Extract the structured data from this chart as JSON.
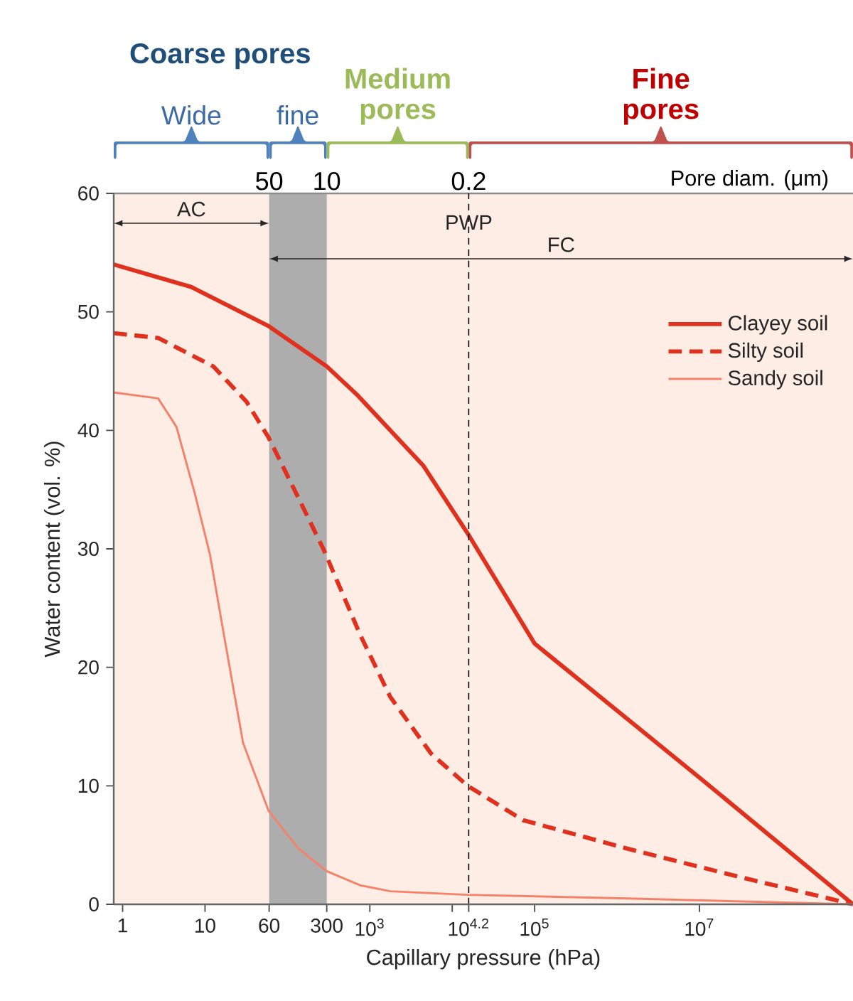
{
  "chart_data": {
    "type": "line",
    "xlabel": "Capillary pressure (hPa)",
    "ylabel": "Water content (vol. %)",
    "log": "x",
    "xlim": [
      0.78,
      730000000
    ],
    "ylim": [
      0,
      60
    ],
    "xticks": [
      1,
      10,
      60,
      300,
      {
        "value": 1000,
        "label": "10$^{3}$"
      },
      {
        "value": 10000,
        "label": null
      },
      {
        "value": 15849,
        "label": "10$^{4.2}$"
      },
      {
        "value": 100000,
        "label": "10$^{5}$"
      },
      {
        "value": 10000000,
        "label": "10$^{7}$"
      }
    ],
    "yticks": [
      0,
      10,
      20,
      30,
      40,
      50,
      60
    ],
    "legend": "top right",
    "series": [
      {
        "name": "Clayey soil",
        "color": "#e0301e",
        "line_style": "solid",
        "x": [
          0.78,
          6.8,
          59,
          300,
          701,
          1770,
          4480,
          15400,
          100000,
          10000000,
          730000000
        ],
        "values": [
          54.0,
          52.1,
          48.8,
          45.4,
          43.0,
          40.0,
          37.0,
          31.3,
          22.0,
          10.7,
          0
        ]
      },
      {
        "name": "Silty soil",
        "color": "#e0301e",
        "line_style": "dashed",
        "x": [
          0.78,
          2.7,
          12.6,
          32,
          59,
          136,
          277,
          769,
          1770,
          5560,
          15400,
          72300,
          1330000,
          31000000,
          730000000
        ],
        "values": [
          48.2,
          47.8,
          45.4,
          42.4,
          39.4,
          34.3,
          29.9,
          22.7,
          17.5,
          12.7,
          10.0,
          7.1,
          4.7,
          2.3,
          0
        ]
      },
      {
        "name": "Sandy soil",
        "color": "#f4826b",
        "line_style": "solid",
        "x": [
          0.78,
          2.7,
          4.5,
          7.5,
          11.5,
          17,
          29,
          59,
          136,
          300,
          769,
          1770,
          15400,
          1330000,
          730000000
        ],
        "values": [
          43.2,
          42.7,
          40.3,
          34.7,
          29.5,
          22.7,
          13.6,
          7.9,
          4.7,
          2.8,
          1.6,
          1.1,
          0.8,
          0.5,
          0
        ]
      }
    ],
    "ref_lines": [
      {
        "axis": "x",
        "value": 15849,
        "label": "PWP",
        "line_style": "dashed",
        "color": "#000000"
      }
    ],
    "bands": [
      {
        "axis": "x",
        "from": 0.78,
        "to": 730000000,
        "color": "#fdede4"
      },
      {
        "axis": "x",
        "from": 60,
        "to": 300,
        "color": "#adadad"
      }
    ],
    "annotations": [
      "Coarse pores",
      "Wide",
      "fine",
      "Medium pores",
      "Fine pores",
      "AC",
      "FC",
      {
        "text": "50",
        "x": 60,
        "y": 60
      },
      {
        "text": "10",
        "x": 300,
        "y": 60
      },
      {
        "text": "0.2",
        "x": 15849,
        "y": 60
      },
      "Pore diam. (μm)"
    ]
  }
}
